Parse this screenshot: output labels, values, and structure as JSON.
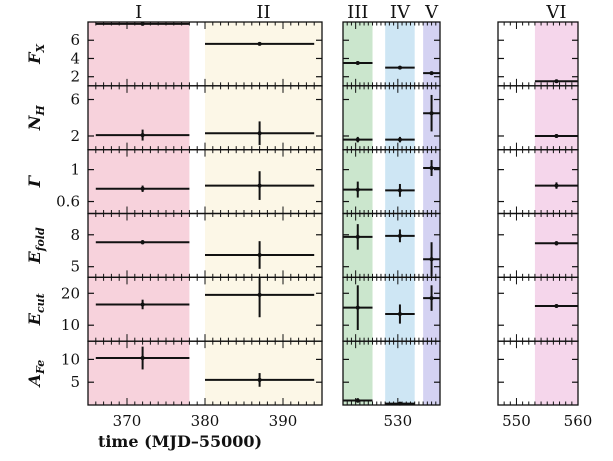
{
  "chart_data": {
    "type": "scatter",
    "xlabel": "time (MJD–55000)",
    "x_segments": [
      {
        "xlim": [
          365,
          395
        ],
        "ticks": [
          370,
          380,
          390
        ]
      },
      {
        "xlim": [
          517,
          540
        ],
        "ticks": [
          530
        ]
      },
      {
        "xlim": [
          547,
          560
        ],
        "ticks": [
          550,
          560
        ]
      }
    ],
    "intervals": [
      {
        "label": "I",
        "range": [
          365,
          378
        ],
        "segment": 0,
        "color": "#f6cad6"
      },
      {
        "label": "II",
        "range": [
          380,
          395
        ],
        "segment": 0,
        "color": "#fcf6e3"
      },
      {
        "label": "III",
        "range": [
          517,
          524
        ],
        "segment": 1,
        "color": "#c2e2c4"
      },
      {
        "label": "IV",
        "range": [
          527,
          534
        ],
        "segment": 1,
        "color": "#c6e2f2"
      },
      {
        "label": "V",
        "range": [
          536,
          540
        ],
        "segment": 1,
        "color": "#cccaf0"
      },
      {
        "label": "VI",
        "range": [
          553,
          560
        ],
        "segment": 2,
        "color": "#f3cfe8"
      }
    ],
    "panels": [
      {
        "symbol": "F",
        "sub": "X",
        "ylim": [
          1,
          8
        ],
        "ticks": [
          2,
          4,
          6
        ],
        "tick_labels": [
          "2",
          "4",
          "6"
        ],
        "points": [
          {
            "x": 372,
            "xerr": [
              6,
              6
            ],
            "y": 7.8,
            "yerr": [
              0.1,
              0.1
            ]
          },
          {
            "x": 387,
            "xerr": [
              7,
              7
            ],
            "y": 5.6,
            "yerr": [
              0.1,
              0.1
            ]
          },
          {
            "x": 520.5,
            "xerr": [
              3.5,
              3.5
            ],
            "y": 3.5,
            "yerr": [
              0.1,
              0.1
            ]
          },
          {
            "x": 530.5,
            "xerr": [
              3.5,
              3.5
            ],
            "y": 3.0,
            "yerr": [
              0.1,
              0.1
            ]
          },
          {
            "x": 538,
            "xerr": [
              2,
              2
            ],
            "y": 2.4,
            "yerr": [
              0.1,
              0.1
            ]
          },
          {
            "x": 556.5,
            "xerr": [
              3.5,
              3.5
            ],
            "y": 1.5,
            "yerr": [
              0.1,
              0.1
            ]
          }
        ]
      },
      {
        "symbol": "N",
        "sub": "H",
        "ylim": [
          0.5,
          7.5
        ],
        "ticks": [
          2,
          6
        ],
        "tick_labels": [
          "2",
          "6"
        ],
        "points": [
          {
            "x": 372,
            "xerr": [
              6,
              6
            ],
            "y": 2.1,
            "yerr": [
              0.6,
              0.6
            ]
          },
          {
            "x": 387,
            "xerr": [
              7,
              7
            ],
            "y": 2.3,
            "yerr": [
              1.3,
              1.3
            ]
          },
          {
            "x": 520.5,
            "xerr": [
              3.5,
              3.5
            ],
            "y": 1.6,
            "yerr": [
              0.3,
              0.3
            ]
          },
          {
            "x": 530.5,
            "xerr": [
              3.5,
              3.5
            ],
            "y": 1.6,
            "yerr": [
              0.3,
              0.3
            ]
          },
          {
            "x": 538,
            "xerr": [
              2,
              2
            ],
            "y": 4.5,
            "yerr": [
              2.0,
              2.0
            ]
          },
          {
            "x": 556.5,
            "xerr": [
              3.5,
              3.5
            ],
            "y": 2.0,
            "yerr": [
              0.2,
              0.2
            ]
          }
        ]
      },
      {
        "symbol": "Γ",
        "sub": "",
        "ylim": [
          0.45,
          1.25
        ],
        "ticks": [
          0.6,
          1
        ],
        "tick_labels": [
          "0.6",
          "1"
        ],
        "points": [
          {
            "x": 372,
            "xerr": [
              6,
              6
            ],
            "y": 0.76,
            "yerr": [
              0.04,
              0.04
            ]
          },
          {
            "x": 387,
            "xerr": [
              7,
              7
            ],
            "y": 0.8,
            "yerr": [
              0.18,
              0.18
            ]
          },
          {
            "x": 520.5,
            "xerr": [
              3.5,
              3.5
            ],
            "y": 0.75,
            "yerr": [
              0.1,
              0.1
            ]
          },
          {
            "x": 530.5,
            "xerr": [
              3.5,
              3.5
            ],
            "y": 0.74,
            "yerr": [
              0.08,
              0.08
            ]
          },
          {
            "x": 538,
            "xerr": [
              2,
              2
            ],
            "y": 1.02,
            "yerr": [
              0.1,
              0.1
            ]
          },
          {
            "x": 556.5,
            "xerr": [
              3.5,
              3.5
            ],
            "y": 0.8,
            "yerr": [
              0.04,
              0.04
            ]
          }
        ]
      },
      {
        "symbol": "E",
        "sub": "fold",
        "ylim": [
          4,
          10
        ],
        "ticks": [
          5,
          8
        ],
        "tick_labels": [
          "5",
          "8"
        ],
        "points": [
          {
            "x": 372,
            "xerr": [
              6,
              6
            ],
            "y": 7.3,
            "yerr": [
              0.2,
              0.2
            ]
          },
          {
            "x": 387,
            "xerr": [
              7,
              7
            ],
            "y": 6.1,
            "yerr": [
              1.3,
              1.3
            ]
          },
          {
            "x": 520.5,
            "xerr": [
              3.5,
              3.5
            ],
            "y": 7.8,
            "yerr": [
              1.2,
              1.2
            ]
          },
          {
            "x": 530.5,
            "xerr": [
              3.5,
              3.5
            ],
            "y": 7.9,
            "yerr": [
              0.6,
              0.6
            ]
          },
          {
            "x": 538,
            "xerr": [
              2,
              2
            ],
            "y": 5.7,
            "yerr": [
              1.6,
              1.6
            ]
          },
          {
            "x": 556.5,
            "xerr": [
              3.5,
              3.5
            ],
            "y": 7.2,
            "yerr": [
              0.2,
              0.2
            ]
          }
        ]
      },
      {
        "symbol": "E",
        "sub": "cut",
        "ylim": [
          5,
          25
        ],
        "ticks": [
          10,
          20
        ],
        "tick_labels": [
          "10",
          "20"
        ],
        "points": [
          {
            "x": 372,
            "xerr": [
              6,
              6
            ],
            "y": 16.5,
            "yerr": [
              1.5,
              1.5
            ]
          },
          {
            "x": 387,
            "xerr": [
              7,
              7
            ],
            "y": 19.5,
            "yerr": [
              7,
              7
            ]
          },
          {
            "x": 520.5,
            "xerr": [
              3.5,
              3.5
            ],
            "y": 15.5,
            "yerr": [
              7,
              7
            ]
          },
          {
            "x": 530.5,
            "xerr": [
              3.5,
              3.5
            ],
            "y": 13.5,
            "yerr": [
              3,
              3
            ]
          },
          {
            "x": 538,
            "xerr": [
              2,
              2
            ],
            "y": 18.5,
            "yerr": [
              4,
              4
            ]
          },
          {
            "x": 556.5,
            "xerr": [
              3.5,
              3.5
            ],
            "y": 16.0,
            "yerr": [
              0.5,
              0.5
            ]
          }
        ]
      },
      {
        "symbol": "A",
        "sub": "Fe",
        "ylim": [
          0,
          14
        ],
        "ticks": [
          5,
          10
        ],
        "tick_labels": [
          "5",
          "10"
        ],
        "points": [
          {
            "x": 372,
            "xerr": [
              6,
              6
            ],
            "y": 10.3,
            "yerr": [
              2.5,
              2.5
            ]
          },
          {
            "x": 387,
            "xerr": [
              7,
              7
            ],
            "y": 5.5,
            "yerr": [
              1.5,
              1.5
            ]
          },
          {
            "x": 520.5,
            "xerr": [
              3.5,
              3.5
            ],
            "y": 1.0,
            "yerr": [
              0.5,
              0.5
            ]
          },
          {
            "x": 530.5,
            "xerr": [
              3.5,
              3.5
            ],
            "y": 0.3,
            "yerr": [
              0.3,
              0.3
            ]
          }
        ]
      }
    ]
  }
}
